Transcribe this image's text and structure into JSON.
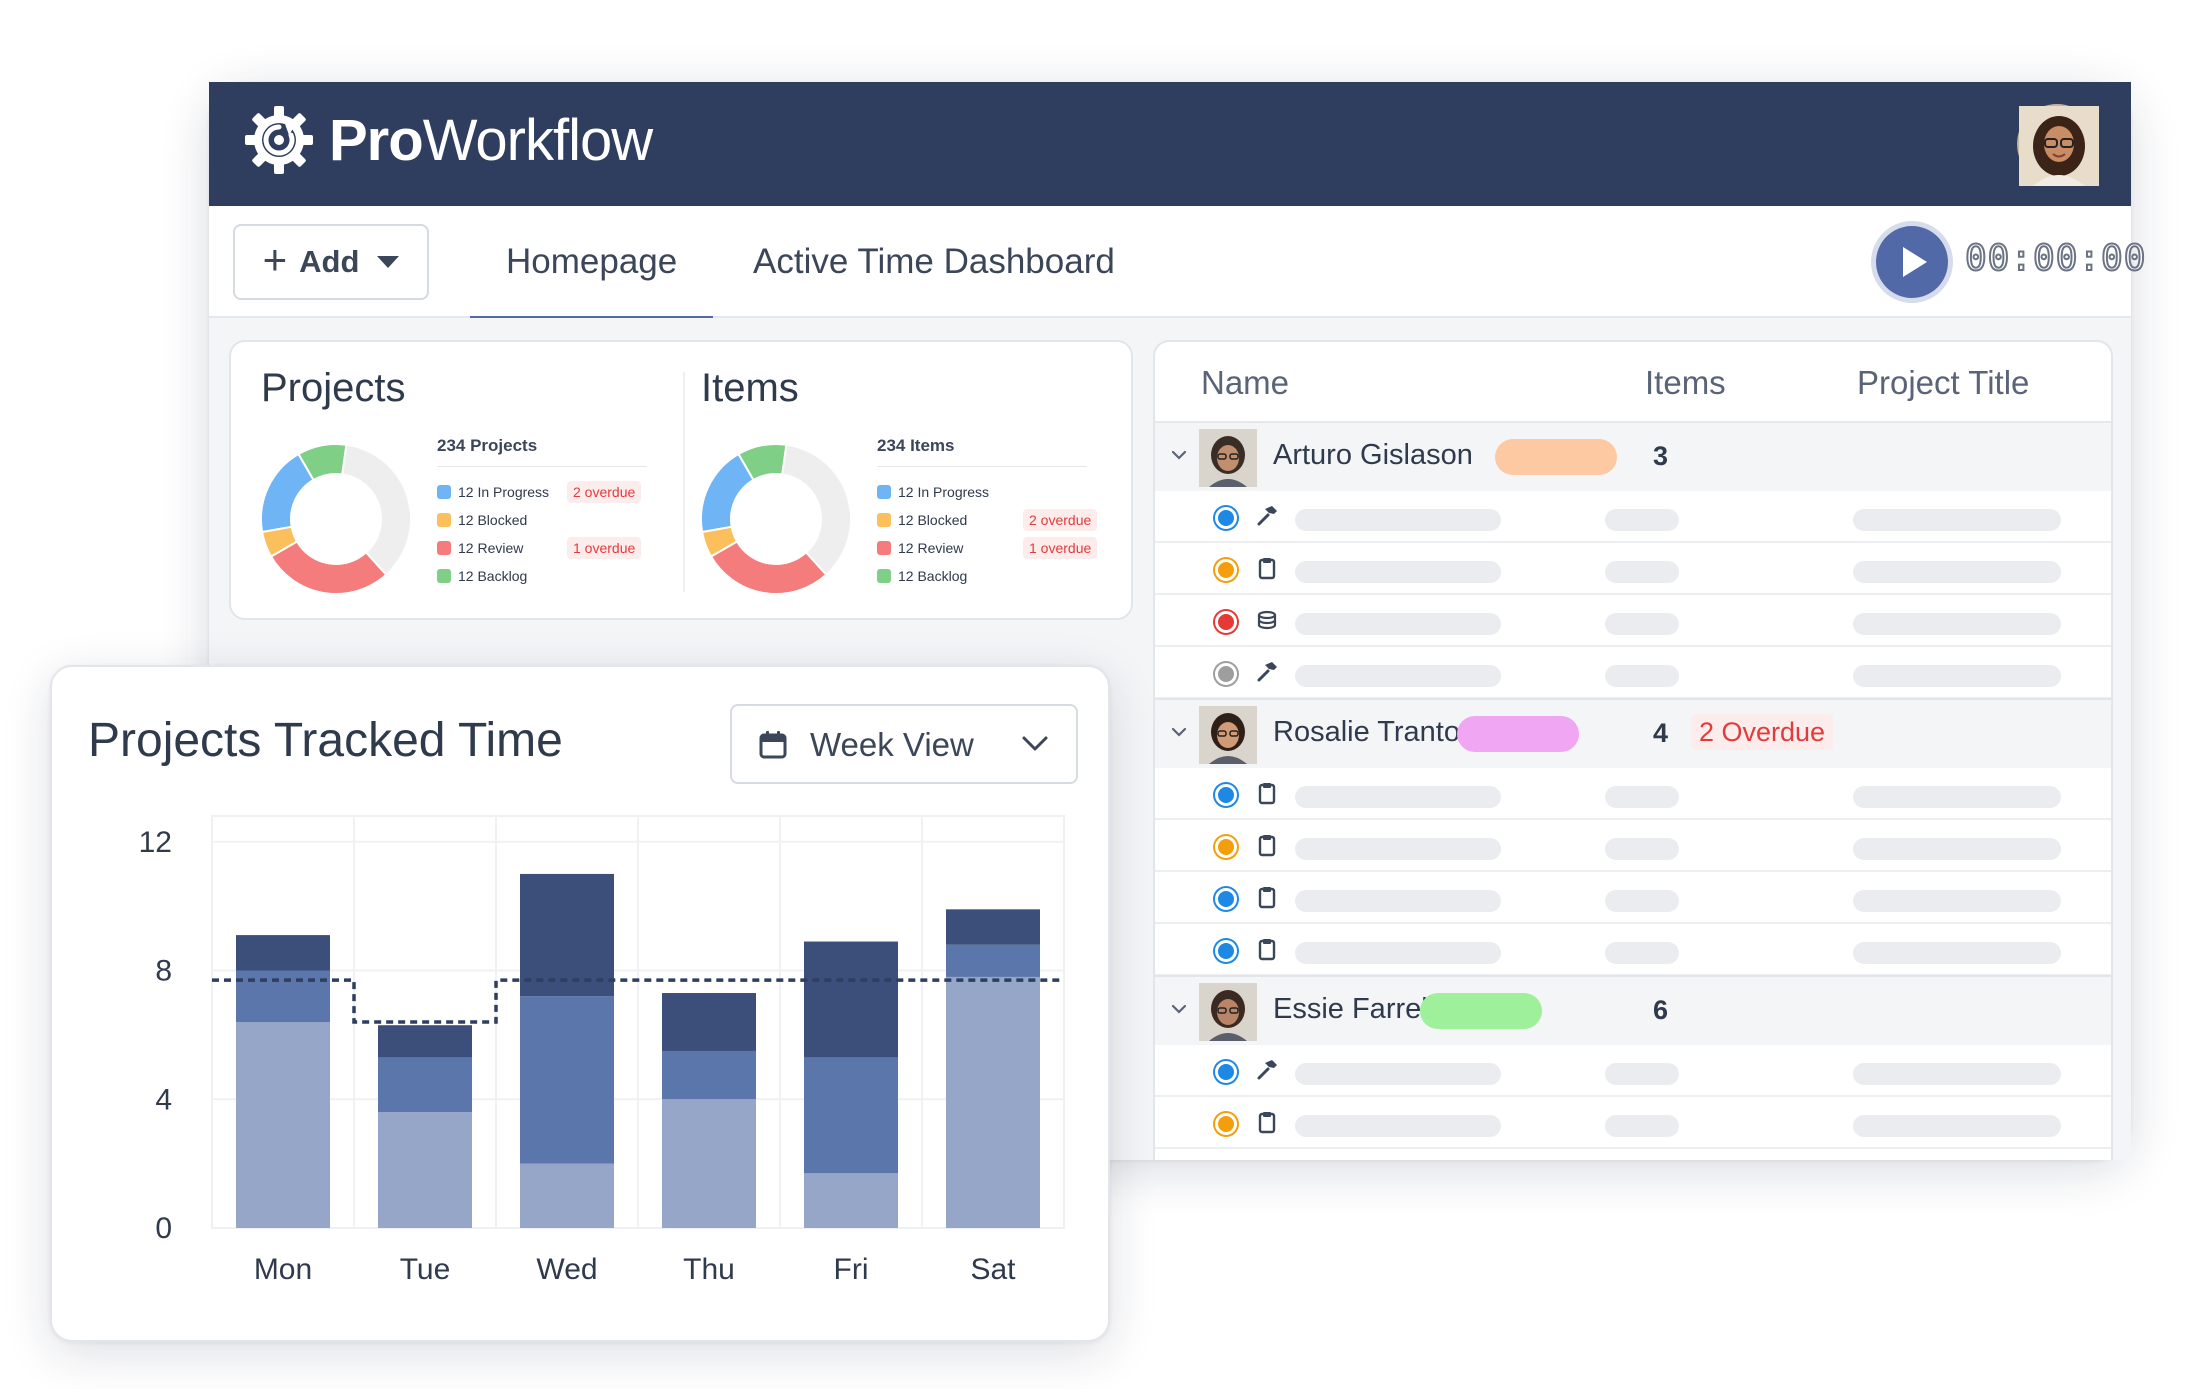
{
  "app": {
    "brand_bold": "Pro",
    "brand_light": "Workflow"
  },
  "toolbar": {
    "add_label": "Add",
    "tabs": [
      {
        "label": "Homepage",
        "active": true
      },
      {
        "label": "Active Time Dashboard",
        "active": false
      }
    ],
    "timer": "00:00:00"
  },
  "summary": {
    "projects": {
      "title": "Projects",
      "count": "234 Projects",
      "legend": [
        {
          "label": "12 In Progress",
          "color": "#6fb4f5",
          "badge": "2 overdue"
        },
        {
          "label": "12 Blocked",
          "color": "#fbbf5b",
          "badge": ""
        },
        {
          "label": "12 Review",
          "color": "#f47c7c",
          "badge": "1 overdue"
        },
        {
          "label": "12 Backlog",
          "color": "#7fcf86",
          "badge": ""
        }
      ]
    },
    "items": {
      "title": "Items",
      "count": "234 Items",
      "legend": [
        {
          "label": "12 In Progress",
          "color": "#6fb4f5",
          "badge": ""
        },
        {
          "label": "12 Blocked",
          "color": "#fbbf5b",
          "badge": "2 overdue"
        },
        {
          "label": "12 Review",
          "color": "#f47c7c",
          "badge": "1 overdue"
        },
        {
          "label": "12 Backlog",
          "color": "#7fcf86",
          "badge": ""
        }
      ]
    },
    "donut_colors": {
      "in_progress": "#6fb4f5",
      "backlog": "#7fcf86",
      "empty": "#eeeeee",
      "review": "#f47c7c",
      "blocked": "#fbbf5b"
    }
  },
  "table": {
    "headers": {
      "name": "Name",
      "items": "Items",
      "project_title": "Project Title"
    },
    "groups": [
      {
        "name": "Arturo Gislason",
        "pill_color": "#fcc9a2",
        "items": "3",
        "overdue": "",
        "rows": [
          {
            "status_color": "#1e88e5",
            "icon": "hammer-icon"
          },
          {
            "status_color": "#f59e0b",
            "icon": "clipboard-icon"
          },
          {
            "status_color": "#e53935",
            "icon": "stack-icon"
          },
          {
            "status_color": "#9e9e9e",
            "icon": "hammer-icon"
          }
        ]
      },
      {
        "name": "Rosalie Trantow",
        "pill_color": "#f0a6f3",
        "items": "4",
        "overdue": "2 Overdue",
        "rows": [
          {
            "status_color": "#1e88e5",
            "icon": "clipboard-icon"
          },
          {
            "status_color": "#f59e0b",
            "icon": "clipboard-icon"
          },
          {
            "status_color": "#1e88e5",
            "icon": "clipboard-icon"
          },
          {
            "status_color": "#1e88e5",
            "icon": "clipboard-icon"
          }
        ]
      },
      {
        "name": "Essie Farrell",
        "pill_color": "#9ef09a",
        "items": "6",
        "overdue": "",
        "rows": [
          {
            "status_color": "#1e88e5",
            "icon": "hammer-icon"
          },
          {
            "status_color": "#f59e0b",
            "icon": "clipboard-icon"
          }
        ]
      }
    ]
  },
  "tracked": {
    "title": "Projects Tracked Time",
    "view_label": "Week View"
  },
  "chart_data": {
    "type": "bar",
    "stacked": true,
    "categories": [
      "Mon",
      "Tue",
      "Wed",
      "Thu",
      "Fri",
      "Sat"
    ],
    "series": [
      {
        "values": [
          6.4,
          3.6,
          2.0,
          4.0,
          1.7,
          7.8
        ],
        "color": "#95a6c8"
      },
      {
        "values": [
          1.6,
          1.7,
          5.2,
          1.5,
          3.6,
          1.0
        ],
        "color": "#5a76ab"
      },
      {
        "values": [
          1.1,
          1.0,
          3.8,
          1.8,
          3.6,
          1.1
        ],
        "color": "#3b4f7a"
      }
    ],
    "target_line": [
      7.7,
      6.4,
      7.7,
      7.7,
      7.7,
      7.7
    ],
    "ylim": [
      0,
      12.8
    ],
    "yticks": [
      0,
      4,
      8,
      12
    ],
    "grid": true
  }
}
